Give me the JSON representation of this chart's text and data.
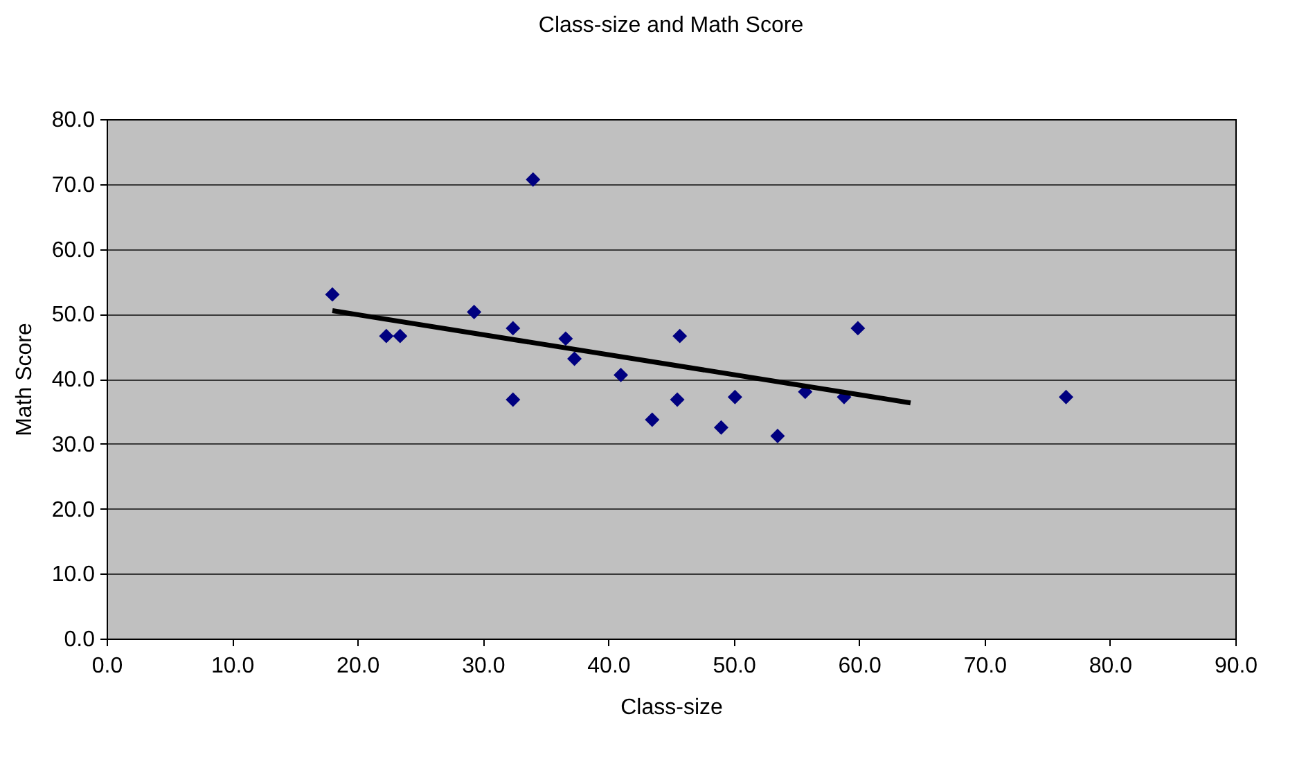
{
  "chart_data": {
    "type": "scatter",
    "title": "Class-size and Math Score",
    "xlabel": "Class-size",
    "ylabel": "Math Score",
    "xlim": [
      0,
      90
    ],
    "xticks": [
      {
        "value": 0,
        "label": "0.0"
      },
      {
        "value": 10,
        "label": "10.0"
      },
      {
        "value": 20,
        "label": "20.0"
      },
      {
        "value": 30,
        "label": "30.0"
      },
      {
        "value": 40,
        "label": "40.0"
      },
      {
        "value": 50,
        "label": "50.0"
      },
      {
        "value": 60,
        "label": "60.0"
      },
      {
        "value": 70,
        "label": "70.0"
      },
      {
        "value": 80,
        "label": "80.0"
      },
      {
        "value": 90,
        "label": "90.0"
      }
    ],
    "ylim": [
      0,
      80
    ],
    "yticks": [
      {
        "value": 0,
        "label": "0.0"
      },
      {
        "value": 10,
        "label": "10.0"
      },
      {
        "value": 20,
        "label": "20.0"
      },
      {
        "value": 30,
        "label": "30.0"
      },
      {
        "value": 40,
        "label": "40.0"
      },
      {
        "value": 50,
        "label": "50.0"
      },
      {
        "value": 60,
        "label": "60.0"
      },
      {
        "value": 70,
        "label": "70.0"
      },
      {
        "value": 80,
        "label": "80.0"
      }
    ],
    "grid": "y",
    "series": [
      {
        "marker": "diamond",
        "color": "#000080",
        "x": [
          18.0,
          22.3,
          23.4,
          29.3,
          32.4,
          32.4,
          34.0,
          36.6,
          37.3,
          41.0,
          43.5,
          45.5,
          45.7,
          49.0,
          50.1,
          53.5,
          55.7,
          58.8,
          59.9,
          76.5
        ],
        "values": [
          53.0,
          46.6,
          46.6,
          50.3,
          47.8,
          36.8,
          70.7,
          46.2,
          43.1,
          40.6,
          33.7,
          36.8,
          46.6,
          32.5,
          37.2,
          31.2,
          38.0,
          37.2,
          47.8,
          37.2
        ]
      },
      {
        "type": "line",
        "marker": "none",
        "line_style": "solid",
        "color": "#000000",
        "x": [
          18.0,
          64.1
        ],
        "values": [
          50.5,
          36.3
        ]
      }
    ]
  }
}
